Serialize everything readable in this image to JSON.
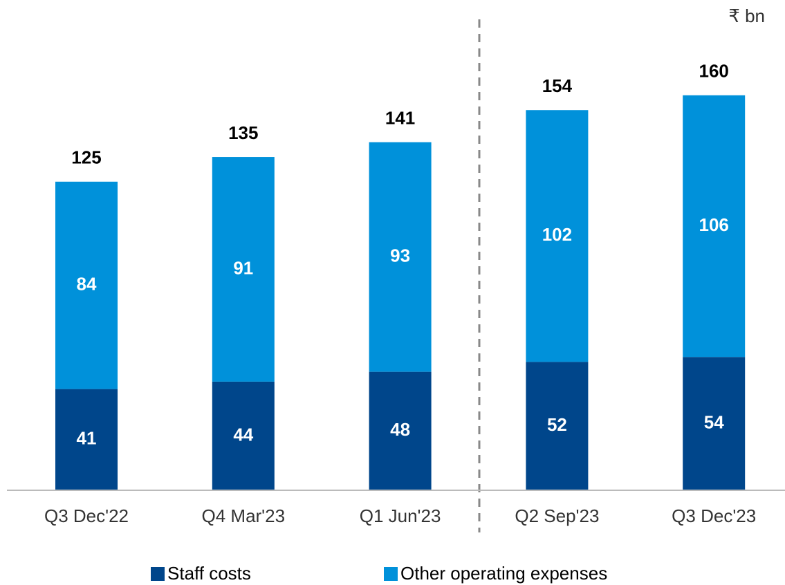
{
  "chart_data": {
    "type": "stacked_bar",
    "unit": "₹ bn",
    "categories": [
      "Q3 Dec'22",
      "Q4 Mar'23",
      "Q1 Jun'23",
      "Q2 Sep'23",
      "Q3 Dec'23"
    ],
    "series": [
      {
        "name": "Staff costs",
        "color": "#00468b",
        "values": [
          41,
          44,
          48,
          52,
          54
        ]
      },
      {
        "name": "Other operating expenses",
        "color": "#0091da",
        "values": [
          84,
          91,
          93,
          102,
          106
        ]
      }
    ],
    "totals": [
      125,
      135,
      141,
      154,
      160
    ]
  }
}
